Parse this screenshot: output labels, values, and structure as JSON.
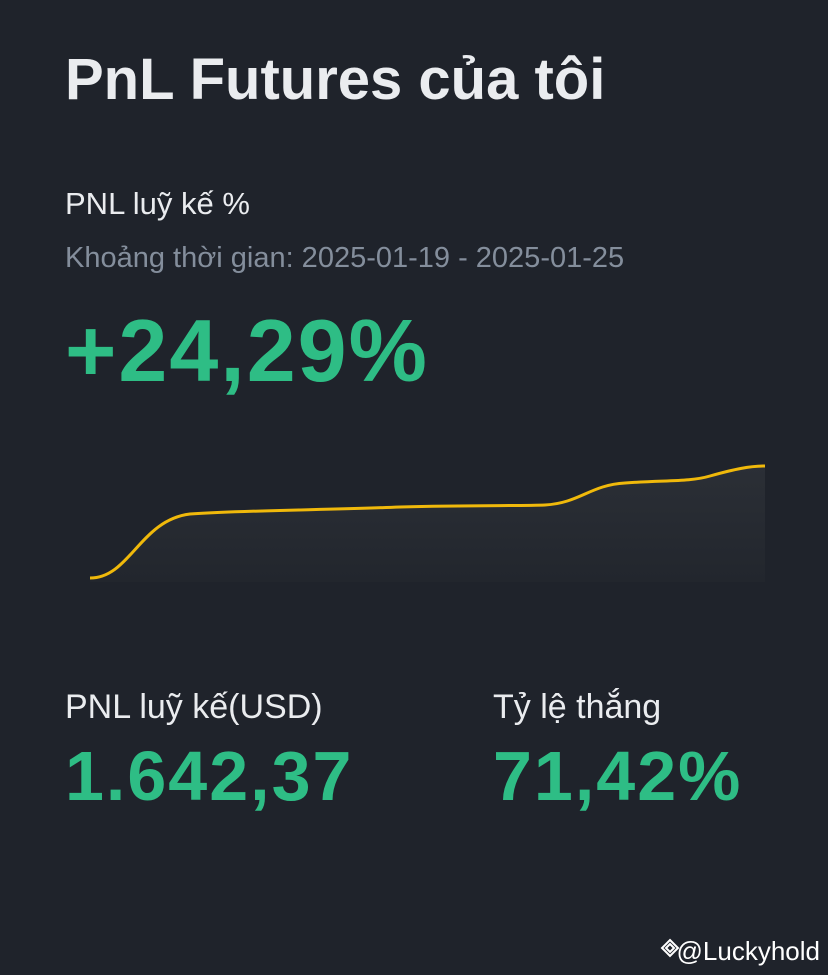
{
  "header": {
    "title": "PnL Futures của tôi"
  },
  "cumulative_pnl_percent": {
    "label": "PNL luỹ kế %",
    "period": "Khoảng thời gian: 2025-01-19 - 2025-01-25",
    "value": "+24,29%"
  },
  "stats": [
    {
      "label": "PNL luỹ kế(USD)",
      "value": "1.642,37"
    },
    {
      "label": "Tỷ lệ thắng",
      "value": "71,42%"
    }
  ],
  "watermark": "@Luckyhold"
}
